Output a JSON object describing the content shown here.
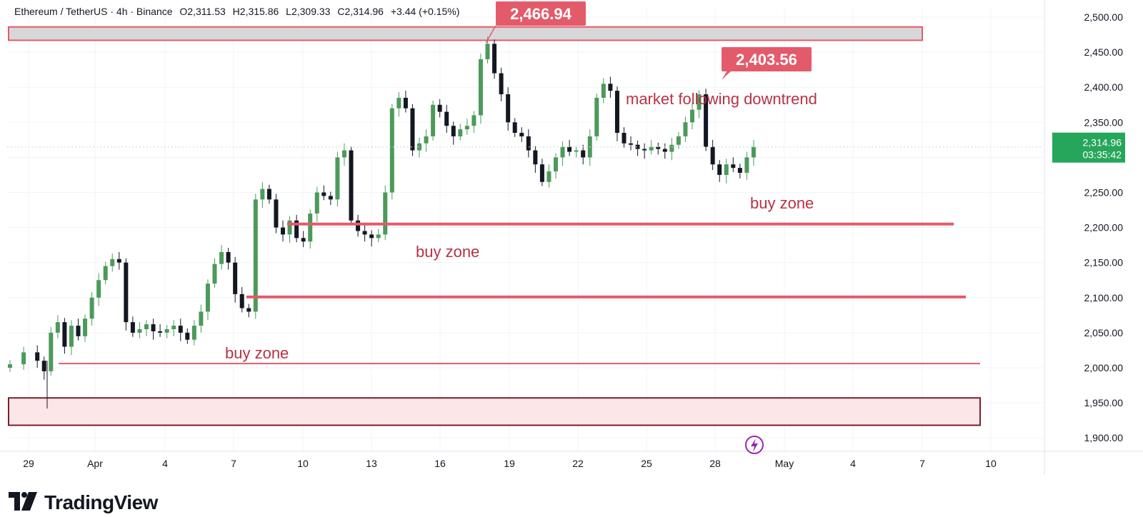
{
  "header": {
    "symbol": "Ethereum / TetherUS · 4h · Binance",
    "open": "O2,311.53",
    "high": "H2,315.86",
    "low": "L2,309.33",
    "close": "C2,314.96",
    "change": "+3.44 (+0.15%)"
  },
  "branding": {
    "name": "TradingView"
  },
  "chart_data": {
    "type": "candlestick",
    "title": "",
    "ylim": [
      1895,
      2515
    ],
    "yticks": [
      "1,900.00",
      "1,950.00",
      "2,000.00",
      "2,050.00",
      "2,100.00",
      "2,150.00",
      "2,200.00",
      "2,250.00",
      "2,300.00",
      "2,350.00",
      "2,400.00",
      "2,450.00",
      "2,500.00"
    ],
    "xticks": [
      "29",
      "Apr",
      "4",
      "7",
      "10",
      "13",
      "16",
      "19",
      "22",
      "25",
      "28",
      "May",
      "4",
      "7",
      "10"
    ],
    "last_price": "2,314.96",
    "countdown": "03:35:42",
    "close_path": [
      [
        0,
        2005
      ],
      [
        2,
        2022
      ],
      [
        4,
        2010
      ],
      [
        5,
        1995
      ],
      [
        6,
        2050
      ],
      [
        7,
        2065
      ],
      [
        8,
        2030
      ],
      [
        9,
        2060
      ],
      [
        10,
        2045
      ],
      [
        11,
        2070
      ],
      [
        12,
        2100
      ],
      [
        13,
        2125
      ],
      [
        14,
        2145
      ],
      [
        15,
        2155
      ],
      [
        16,
        2150
      ],
      [
        17,
        2065
      ],
      [
        18,
        2050
      ],
      [
        19,
        2055
      ],
      [
        20,
        2062
      ],
      [
        21,
        2052
      ],
      [
        22,
        2050
      ],
      [
        23,
        2055
      ],
      [
        24,
        2060
      ],
      [
        25,
        2050
      ],
      [
        26,
        2040
      ],
      [
        27,
        2060
      ],
      [
        28,
        2080
      ],
      [
        29,
        2120
      ],
      [
        30,
        2148
      ],
      [
        31,
        2165
      ],
      [
        32,
        2150
      ],
      [
        33,
        2105
      ],
      [
        34,
        2085
      ],
      [
        35,
        2080
      ],
      [
        36,
        2240
      ],
      [
        37,
        2255
      ],
      [
        38,
        2240
      ],
      [
        39,
        2200
      ],
      [
        40,
        2190
      ],
      [
        41,
        2210
      ],
      [
        42,
        2185
      ],
      [
        43,
        2180
      ],
      [
        44,
        2220
      ],
      [
        45,
        2250
      ],
      [
        46,
        2245
      ],
      [
        47,
        2240
      ],
      [
        48,
        2300
      ],
      [
        49,
        2310
      ],
      [
        50,
        2210
      ],
      [
        51,
        2195
      ],
      [
        52,
        2190
      ],
      [
        53,
        2185
      ],
      [
        54,
        2190
      ],
      [
        55,
        2250
      ],
      [
        56,
        2370
      ],
      [
        57,
        2385
      ],
      [
        58,
        2370
      ],
      [
        59,
        2310
      ],
      [
        60,
        2320
      ],
      [
        61,
        2330
      ],
      [
        62,
        2375
      ],
      [
        63,
        2365
      ],
      [
        64,
        2345
      ],
      [
        65,
        2330
      ],
      [
        66,
        2340
      ],
      [
        67,
        2345
      ],
      [
        68,
        2360
      ],
      [
        69,
        2440
      ],
      [
        70,
        2462
      ],
      [
        71,
        2420
      ],
      [
        72,
        2390
      ],
      [
        73,
        2350
      ],
      [
        74,
        2335
      ],
      [
        75,
        2330
      ],
      [
        76,
        2310
      ],
      [
        77,
        2290
      ],
      [
        78,
        2265
      ],
      [
        79,
        2280
      ],
      [
        80,
        2300
      ],
      [
        81,
        2315
      ],
      [
        82,
        2308
      ],
      [
        83,
        2310
      ],
      [
        84,
        2300
      ],
      [
        85,
        2330
      ],
      [
        86,
        2385
      ],
      [
        87,
        2405
      ],
      [
        88,
        2395
      ],
      [
        89,
        2335
      ],
      [
        90,
        2320
      ],
      [
        91,
        2318
      ],
      [
        92,
        2312
      ],
      [
        93,
        2310
      ],
      [
        94,
        2315
      ],
      [
        95,
        2312
      ],
      [
        96,
        2308
      ],
      [
        97,
        2318
      ],
      [
        98,
        2330
      ],
      [
        99,
        2350
      ],
      [
        100,
        2368
      ],
      [
        101,
        2390
      ],
      [
        102,
        2315
      ],
      [
        103,
        2290
      ],
      [
        104,
        2275
      ],
      [
        105,
        2290
      ],
      [
        106,
        2285
      ],
      [
        107,
        2278
      ],
      [
        108,
        2300
      ],
      [
        109,
        2314.96
      ]
    ],
    "annotations": [
      {
        "type": "zone",
        "label": "",
        "from": 2468,
        "to": 2485,
        "fill": "#d7d7d9",
        "border": "#e35b6a"
      },
      {
        "type": "zone",
        "label": "",
        "from": 1918,
        "to": 1957,
        "fill": "#fde6e8",
        "border": "#7a1f2b"
      },
      {
        "type": "level",
        "value": 2205,
        "color": "#e35b6a"
      },
      {
        "type": "level",
        "value": 2101,
        "color": "#e35b6a"
      },
      {
        "type": "level",
        "value": 2006,
        "color": "#e35b6a"
      },
      {
        "type": "price_label",
        "text": "2,466.94"
      },
      {
        "type": "price_label",
        "text": "2,403.56"
      }
    ],
    "text_annotations": {
      "market": "market following downtrend",
      "buy_zone_1": "buy zone",
      "buy_zone_2": "buy zone",
      "buy_zone_3": "buy zone"
    },
    "colors": {
      "up": "#4c9a5a",
      "down": "#131722",
      "accent": "#e35b6a",
      "text_accent": "#b83245",
      "last_price_bg": "#26a65b"
    }
  }
}
